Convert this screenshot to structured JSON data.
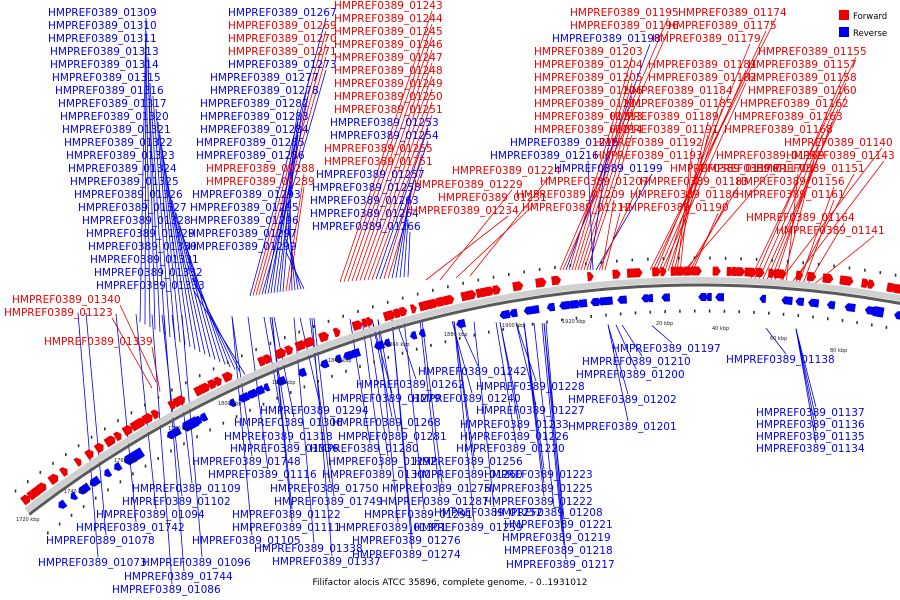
{
  "legend": [
    {
      "label": "Forward",
      "color": "#ee0000"
    },
    {
      "label": "Reverse",
      "color": "#0000ee"
    }
  ],
  "caption": "Filifactor alocis ATCC 35896, complete genome. - 0..1931012",
  "colors": {
    "forward": "#ee0000",
    "reverse": "#0000ee",
    "backbone": "#888888"
  },
  "ticks": [
    "1720 kbp",
    "1740 kbp",
    "1760 kbp",
    "1780 kbp",
    "1800 kbp",
    "1820 kbp",
    "1840 kbp",
    "1860 kbp",
    "1880 kbp",
    "1900 kbp",
    "1920 kbp",
    "20 kbp",
    "40 kbp",
    "60 kbp",
    "80 kbp"
  ],
  "labels_top": [
    {
      "text": "HMPREF0389_01309",
      "strand": "reverse"
    },
    {
      "text": "HMPREF0389_01310",
      "strand": "reverse"
    },
    {
      "text": "HMPREF0389_01311",
      "strand": "reverse"
    },
    {
      "text": "HMPREF0389_01313",
      "strand": "reverse"
    },
    {
      "text": "HMPREF0389_01314",
      "strand": "reverse"
    },
    {
      "text": "HMPREF0389_01315",
      "strand": "reverse"
    },
    {
      "text": "HMPREF0389_01316",
      "strand": "reverse"
    },
    {
      "text": "HMPREF0389_01317",
      "strand": "reverse"
    },
    {
      "text": "HMPREF0389_01320",
      "strand": "reverse"
    },
    {
      "text": "HMPREF0389_01321",
      "strand": "reverse"
    },
    {
      "text": "HMPREF0389_01322",
      "strand": "reverse"
    },
    {
      "text": "HMPREF0389_01323",
      "strand": "reverse"
    },
    {
      "text": "HMPREF0389_01324",
      "strand": "reverse"
    },
    {
      "text": "HMPREF0389_01325",
      "strand": "reverse"
    },
    {
      "text": "HMPREF0389_01326",
      "strand": "reverse"
    },
    {
      "text": "HMPREF0389_01327",
      "strand": "reverse"
    },
    {
      "text": "HMPREF0389_01328",
      "strand": "reverse"
    },
    {
      "text": "HMPREF0389_01329",
      "strand": "reverse"
    },
    {
      "text": "HMPREF0389_01330",
      "strand": "reverse"
    },
    {
      "text": "HMPREF0389_01331",
      "strand": "reverse"
    },
    {
      "text": "HMPREF0389_01332",
      "strand": "reverse"
    },
    {
      "text": "HMPREF0389_01333",
      "strand": "reverse"
    },
    {
      "text": "HMPREF0389_01340",
      "strand": "forward"
    },
    {
      "text": "HMPREF0389_01123",
      "strand": "forward"
    },
    {
      "text": "HMPREF0389_01339",
      "strand": "forward"
    },
    {
      "text": "HMPREF0389_01267",
      "strand": "reverse"
    },
    {
      "text": "HMPREF0389_01269",
      "strand": "forward"
    },
    {
      "text": "HMPREF0389_01270",
      "strand": "forward"
    },
    {
      "text": "HMPREF0389_01271",
      "strand": "forward"
    },
    {
      "text": "HMPREF0389_01273",
      "strand": "reverse"
    },
    {
      "text": "HMPREF0389_01277",
      "strand": "reverse"
    },
    {
      "text": "HMPREF0389_01278",
      "strand": "reverse"
    },
    {
      "text": "HMPREF0389_01282",
      "strand": "reverse"
    },
    {
      "text": "HMPREF0389_01283",
      "strand": "reverse"
    },
    {
      "text": "HMPREF0389_01284",
      "strand": "reverse"
    },
    {
      "text": "HMPREF0389_01285",
      "strand": "reverse"
    },
    {
      "text": "HMPREF0389_01286",
      "strand": "reverse"
    },
    {
      "text": "HMPREF0389_01288",
      "strand": "forward"
    },
    {
      "text": "HMPREF0389_01289",
      "strand": "forward"
    },
    {
      "text": "HMPREF0389_01293",
      "strand": "reverse"
    },
    {
      "text": "HMPREF0389_01295",
      "strand": "reverse"
    },
    {
      "text": "HMPREF0389_01296",
      "strand": "reverse"
    },
    {
      "text": "HMPREF0389_01297",
      "strand": "reverse"
    },
    {
      "text": "HMPREF0389_01299",
      "strand": "reverse"
    },
    {
      "text": "HMPREF0389_01243",
      "strand": "forward"
    },
    {
      "text": "HMPREF0389_01244",
      "strand": "forward"
    },
    {
      "text": "HMPREF0389_01245",
      "strand": "forward"
    },
    {
      "text": "HMPREF0389_01246",
      "strand": "forward"
    },
    {
      "text": "HMPREF0389_01247",
      "strand": "forward"
    },
    {
      "text": "HMPREF0389_01248",
      "strand": "forward"
    },
    {
      "text": "HMPREF0389_01249",
      "strand": "forward"
    },
    {
      "text": "HMPREF0389_01250",
      "strand": "forward"
    },
    {
      "text": "HMPREF0389_01251",
      "strand": "forward"
    },
    {
      "text": "HMPREF0389_01253",
      "strand": "reverse"
    },
    {
      "text": "HMPREF0389_01254",
      "strand": "reverse"
    },
    {
      "text": "HMPREF0389_01255",
      "strand": "forward"
    },
    {
      "text": "HMPREF0389_01751",
      "strand": "forward"
    },
    {
      "text": "HMPREF0389_01257",
      "strand": "reverse"
    },
    {
      "text": "HMPREF0389_01258",
      "strand": "reverse"
    },
    {
      "text": "HMPREF0389_01263",
      "strand": "reverse"
    },
    {
      "text": "HMPREF0389_01264",
      "strand": "reverse"
    },
    {
      "text": "HMPREF0389_01266",
      "strand": "reverse"
    },
    {
      "text": "HMPREF0389_01229",
      "strand": "forward"
    },
    {
      "text": "HMPREF0389_01224",
      "strand": "forward"
    },
    {
      "text": "HMPREF0389_01231",
      "strand": "forward"
    },
    {
      "text": "HMPREF0389_01234",
      "strand": "forward"
    },
    {
      "text": "HMPREF0389_01195",
      "strand": "forward"
    },
    {
      "text": "HMPREF0389_01196",
      "strand": "forward"
    },
    {
      "text": "HMPREF0389_01198",
      "strand": "reverse"
    },
    {
      "text": "HMPREF0389_01203",
      "strand": "forward"
    },
    {
      "text": "HMPREF0389_01204",
      "strand": "forward"
    },
    {
      "text": "HMPREF0389_01205",
      "strand": "forward"
    },
    {
      "text": "HMPREF0389_01206",
      "strand": "forward"
    },
    {
      "text": "HMPREF0389_01211",
      "strand": "forward"
    },
    {
      "text": "HMPREF0389_01213",
      "strand": "forward"
    },
    {
      "text": "HMPREF0389_01214",
      "strand": "forward"
    },
    {
      "text": "HMPREF0389_01215",
      "strand": "reverse"
    },
    {
      "text": "HMPREF0389_01216",
      "strand": "reverse"
    },
    {
      "text": "HMPREF0389_01199",
      "strand": "reverse"
    },
    {
      "text": "HMPREF0389_01207",
      "strand": "forward"
    },
    {
      "text": "HMPREF0389_01209",
      "strand": "forward"
    },
    {
      "text": "HMPREF0389_01212",
      "strand": "forward"
    },
    {
      "text": "HMPREF0389_01174",
      "strand": "forward"
    },
    {
      "text": "HMPREF0389_01175",
      "strand": "forward"
    },
    {
      "text": "HMPREF0389_01179",
      "strand": "forward"
    },
    {
      "text": "HMPREF0389_01181",
      "strand": "forward"
    },
    {
      "text": "HMPREF0389_01182",
      "strand": "forward"
    },
    {
      "text": "HMPREF0389_01184",
      "strand": "forward"
    },
    {
      "text": "HMPREF0389_01185",
      "strand": "forward"
    },
    {
      "text": "HMPREF0389_01189",
      "strand": "forward"
    },
    {
      "text": "HMPREF0389_01191",
      "strand": "forward"
    },
    {
      "text": "HMPREF0389_01192",
      "strand": "forward"
    },
    {
      "text": "HMPREF0389_01193",
      "strand": "forward"
    },
    {
      "text": "HMPREF0389_01176",
      "strand": "forward"
    },
    {
      "text": "HMPREF0389_01183",
      "strand": "forward"
    },
    {
      "text": "HMPREF0389_01186",
      "strand": "forward"
    },
    {
      "text": "HMPREF0389_01190",
      "strand": "forward"
    },
    {
      "text": "HMPREF0389_01155",
      "strand": "forward"
    },
    {
      "text": "HMPREF0389_01157",
      "strand": "forward"
    },
    {
      "text": "HMPREF0389_01158",
      "strand": "forward"
    },
    {
      "text": "HMPREF0389_01160",
      "strand": "forward"
    },
    {
      "text": "HMPREF0389_01162",
      "strand": "forward"
    },
    {
      "text": "HMPREF0389_01163",
      "strand": "forward"
    },
    {
      "text": "HMPREF0389_01168",
      "strand": "forward"
    },
    {
      "text": "HMPREF0389_01140",
      "strand": "forward"
    },
    {
      "text": "HMPREF0389_01169",
      "strand": "forward"
    },
    {
      "text": "HMPREF0389_01170",
      "strand": "forward"
    },
    {
      "text": "HMPREF0389_01143",
      "strand": "forward"
    },
    {
      "text": "HMPREF0389_01151",
      "strand": "forward"
    },
    {
      "text": "HMPREF0389_01156",
      "strand": "forward"
    },
    {
      "text": "HMPREF0389_01161",
      "strand": "forward"
    },
    {
      "text": "HMPREF0389_01164",
      "strand": "forward"
    },
    {
      "text": "HMPREF0389_01141",
      "strand": "forward"
    }
  ],
  "labels_bottom": [
    {
      "text": "HMPREF0389_01210",
      "strand": "reverse"
    },
    {
      "text": "HMPREF0389_01197",
      "strand": "reverse"
    },
    {
      "text": "HMPREF0389_01200",
      "strand": "reverse"
    },
    {
      "text": "HMPREF0389_01138",
      "strand": "reverse"
    },
    {
      "text": "HMPREF0389_01242",
      "strand": "reverse"
    },
    {
      "text": "HMPREF0389_01228",
      "strand": "reverse"
    },
    {
      "text": "HMPREF0389_01262",
      "strand": "reverse"
    },
    {
      "text": "HMPREF0389_01202",
      "strand": "reverse"
    },
    {
      "text": "HMPREF0389_01279",
      "strand": "reverse"
    },
    {
      "text": "HMPREF0389_01240",
      "strand": "reverse"
    },
    {
      "text": "HMPREF0389_01294",
      "strand": "reverse"
    },
    {
      "text": "HMPREF0389_01227",
      "strand": "reverse"
    },
    {
      "text": "HMPREF0389_01137",
      "strand": "reverse"
    },
    {
      "text": "HMPREF0389_01306",
      "strand": "reverse"
    },
    {
      "text": "HMPREF0389_01268",
      "strand": "reverse"
    },
    {
      "text": "HMPREF0389_01233",
      "strand": "reverse"
    },
    {
      "text": "HMPREF0389_01201",
      "strand": "reverse"
    },
    {
      "text": "HMPREF0389_01136",
      "strand": "reverse"
    },
    {
      "text": "HMPREF0389_01318",
      "strand": "reverse"
    },
    {
      "text": "HMPREF0389_01281",
      "strand": "reverse"
    },
    {
      "text": "HMPREF0389_01226",
      "strand": "reverse"
    },
    {
      "text": "HMPREF0389_01135",
      "strand": "reverse"
    },
    {
      "text": "HMPREF0389_01336",
      "strand": "reverse"
    },
    {
      "text": "HMPREF0389_01280",
      "strand": "reverse"
    },
    {
      "text": "HMPREF0389_01220",
      "strand": "reverse"
    },
    {
      "text": "HMPREF0389_01134",
      "strand": "reverse"
    },
    {
      "text": "HMPREF0389_01748",
      "strand": "reverse"
    },
    {
      "text": "HMPREF0389_01292",
      "strand": "reverse"
    },
    {
      "text": "HMPREF0389_01256",
      "strand": "reverse"
    },
    {
      "text": "HMPREF0389_01116",
      "strand": "reverse"
    },
    {
      "text": "HMPREF0389_01300",
      "strand": "reverse"
    },
    {
      "text": "HMPREF0389_01260",
      "strand": "reverse"
    },
    {
      "text": "HMPREF0389_01223",
      "strand": "reverse"
    },
    {
      "text": "HMPREF0389_01109",
      "strand": "reverse"
    },
    {
      "text": "HMPREF0389_01750",
      "strand": "reverse"
    },
    {
      "text": "HMPREF0389_01275",
      "strand": "reverse"
    },
    {
      "text": "HMPREF0389_01225",
      "strand": "reverse"
    },
    {
      "text": "HMPREF0389_01102",
      "strand": "reverse"
    },
    {
      "text": "HMPREF0389_01749",
      "strand": "reverse"
    },
    {
      "text": "HMPREF0389_01287",
      "strand": "reverse"
    },
    {
      "text": "HMPREF0389_01222",
      "strand": "reverse"
    },
    {
      "text": "HMPREF0389_01094",
      "strand": "reverse"
    },
    {
      "text": "HMPREF0389_01122",
      "strand": "reverse"
    },
    {
      "text": "HMPREF0389_01291",
      "strand": "reverse"
    },
    {
      "text": "HMPREF0389_01252",
      "strand": "reverse"
    },
    {
      "text": "HMPREF0389_01208",
      "strand": "reverse"
    },
    {
      "text": "HMPREF0389_01742",
      "strand": "reverse"
    },
    {
      "text": "HMPREF0389_01111",
      "strand": "reverse"
    },
    {
      "text": "HMPREF0389_01301",
      "strand": "reverse"
    },
    {
      "text": "HMPREF0389_01259",
      "strand": "reverse"
    },
    {
      "text": "HMPREF0389_01221",
      "strand": "reverse"
    },
    {
      "text": "HMPREF0389_01078",
      "strand": "reverse"
    },
    {
      "text": "HMPREF0389_01105",
      "strand": "reverse"
    },
    {
      "text": "HMPREF0389_01276",
      "strand": "reverse"
    },
    {
      "text": "HMPREF0389_01219",
      "strand": "reverse"
    },
    {
      "text": "HMPREF0389_01338",
      "strand": "reverse"
    },
    {
      "text": "HMPREF0389_01274",
      "strand": "reverse"
    },
    {
      "text": "HMPREF0389_01218",
      "strand": "reverse"
    },
    {
      "text": "HMPREF0389_01073",
      "strand": "reverse"
    },
    {
      "text": "HMPREF0389_01096",
      "strand": "reverse"
    },
    {
      "text": "HMPREF0389_01337",
      "strand": "reverse"
    },
    {
      "text": "HMPREF0389_01217",
      "strand": "reverse"
    },
    {
      "text": "HMPREF0389_01744",
      "strand": "reverse"
    },
    {
      "text": "HMPREF0389_01086",
      "strand": "reverse"
    }
  ]
}
